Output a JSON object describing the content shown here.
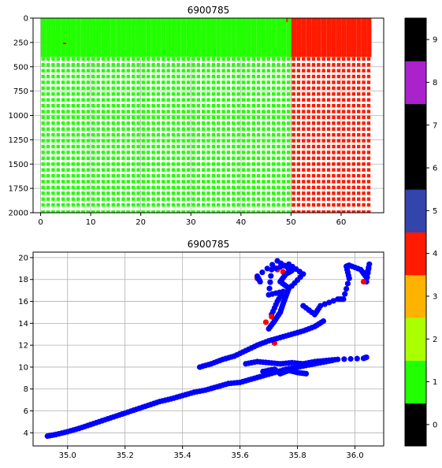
{
  "chart_data": [
    {
      "type": "scatter",
      "title": "6900785",
      "xlabel": "",
      "ylabel": "",
      "xlim": [
        -1.5,
        68.5
      ],
      "ylim": [
        2000,
        0
      ],
      "y_inverted": true,
      "grid": true,
      "xticks": [
        "0",
        "10",
        "20",
        "30",
        "40",
        "50",
        "60"
      ],
      "yticks": [
        "0",
        "250",
        "500",
        "750",
        "1000",
        "1250",
        "1500",
        "1750",
        "2000"
      ],
      "columns": {
        "x_start": 0.5,
        "x_end": 65.5,
        "count": 66,
        "y_min": 0,
        "y_max": 2000
      },
      "series": [
        {
          "name": "",
          "flag": 1,
          "color": "#22ff00",
          "x_range": [
            0.5,
            50.5
          ],
          "y_range": [
            0,
            2000
          ]
        },
        {
          "name": "",
          "flag": 4,
          "color": "#ff1a00",
          "x_range": [
            50.5,
            65.5
          ],
          "y_range": [
            0,
            2000
          ]
        }
      ]
    },
    {
      "type": "scatter",
      "title": "6900785",
      "xlabel": "",
      "ylabel": "",
      "xlim": [
        34.88,
        36.1
      ],
      "ylim": [
        2.8,
        20.5
      ],
      "grid": true,
      "xticks": [
        "35.0",
        "35.2",
        "35.4",
        "35.6",
        "35.8",
        "36.0"
      ],
      "yticks": [
        "4",
        "6",
        "8",
        "10",
        "12",
        "14",
        "16",
        "18",
        "20"
      ],
      "series": [
        {
          "name": "",
          "color": "#0000ff",
          "points": [
            [
              34.93,
              3.7
            ],
            [
              34.96,
              3.85
            ],
            [
              35.0,
              4.1
            ],
            [
              35.04,
              4.4
            ],
            [
              35.08,
              4.75
            ],
            [
              35.12,
              5.1
            ],
            [
              35.16,
              5.45
            ],
            [
              35.2,
              5.8
            ],
            [
              35.24,
              6.15
            ],
            [
              35.28,
              6.5
            ],
            [
              35.32,
              6.85
            ],
            [
              35.36,
              7.1
            ],
            [
              35.4,
              7.4
            ],
            [
              35.44,
              7.7
            ],
            [
              35.48,
              7.9
            ],
            [
              35.52,
              8.2
            ],
            [
              35.56,
              8.5
            ],
            [
              35.6,
              8.6
            ],
            [
              35.64,
              8.9
            ],
            [
              35.68,
              9.2
            ],
            [
              35.72,
              9.5
            ],
            [
              35.76,
              9.8
            ],
            [
              35.8,
              10.0
            ],
            [
              35.84,
              10.2
            ],
            [
              35.88,
              10.4
            ],
            [
              35.92,
              10.6
            ],
            [
              35.46,
              10.0
            ],
            [
              35.5,
              10.3
            ],
            [
              35.54,
              10.7
            ],
            [
              35.58,
              11.0
            ],
            [
              35.62,
              11.5
            ],
            [
              35.66,
              12.0
            ],
            [
              35.7,
              12.4
            ],
            [
              35.74,
              12.7
            ],
            [
              35.78,
              13.0
            ],
            [
              35.82,
              13.3
            ],
            [
              35.86,
              13.7
            ],
            [
              35.89,
              14.2
            ],
            [
              35.62,
              10.3
            ],
            [
              35.66,
              10.5
            ],
            [
              35.7,
              10.4
            ],
            [
              35.74,
              10.3
            ],
            [
              35.78,
              10.4
            ],
            [
              35.82,
              10.3
            ],
            [
              35.86,
              10.5
            ],
            [
              35.9,
              10.6
            ],
            [
              35.94,
              10.7
            ],
            [
              36.03,
              10.8
            ],
            [
              36.04,
              10.9
            ],
            [
              35.68,
              9.6
            ],
            [
              35.72,
              9.8
            ],
            [
              35.74,
              9.4
            ],
            [
              35.77,
              9.7
            ],
            [
              35.8,
              9.5
            ],
            [
              35.83,
              9.4
            ],
            [
              35.7,
              13.5
            ],
            [
              35.72,
              14.2
            ],
            [
              35.74,
              15.0
            ],
            [
              35.75,
              15.8
            ],
            [
              35.76,
              16.5
            ],
            [
              35.77,
              17.2
            ],
            [
              35.74,
              17.8
            ],
            [
              35.76,
              18.5
            ],
            [
              35.78,
              18.8
            ],
            [
              35.73,
              19.7
            ],
            [
              35.66,
              18.3
            ],
            [
              35.67,
              17.8
            ],
            [
              35.82,
              15.6
            ],
            [
              35.86,
              14.8
            ],
            [
              35.88,
              15.6
            ],
            [
              35.94,
              16.2
            ],
            [
              35.96,
              16.2
            ],
            [
              35.98,
              18.1
            ],
            [
              35.97,
              19.2
            ],
            [
              35.98,
              19.3
            ],
            [
              36.02,
              18.9
            ],
            [
              36.04,
              18.2
            ],
            [
              36.05,
              19.4
            ],
            [
              36.04,
              17.8
            ],
            [
              35.71,
              14.8
            ],
            [
              35.73,
              16.0
            ],
            [
              35.75,
              16.9
            ],
            [
              35.7,
              16.6
            ],
            [
              35.71,
              18.9
            ],
            [
              35.77,
              19.4
            ],
            [
              35.82,
              18.5
            ],
            [
              35.78,
              17.4
            ]
          ]
        },
        {
          "name": "",
          "color": "#ff0000",
          "points": [
            [
              35.73,
              18.9
            ],
            [
              35.66,
              18.1
            ],
            [
              36.03,
              17.8
            ],
            [
              35.76,
              16.7
            ],
            [
              35.71,
              14.6
            ],
            [
              35.69,
              14.1
            ],
            [
              35.75,
              18.7
            ],
            [
              35.72,
              12.2
            ]
          ]
        }
      ]
    },
    {
      "type": "colorbar",
      "tick_labels": [
        "0",
        "1",
        "2",
        "3",
        "4",
        "5",
        "6",
        "7",
        "8",
        "9"
      ],
      "colors": [
        "#000000",
        "#22ff00",
        "#aaff00",
        "#ffb300",
        "#ff1a00",
        "#3344aa",
        "#000000",
        "#000000",
        "#aa22cc",
        "#000000"
      ]
    }
  ]
}
